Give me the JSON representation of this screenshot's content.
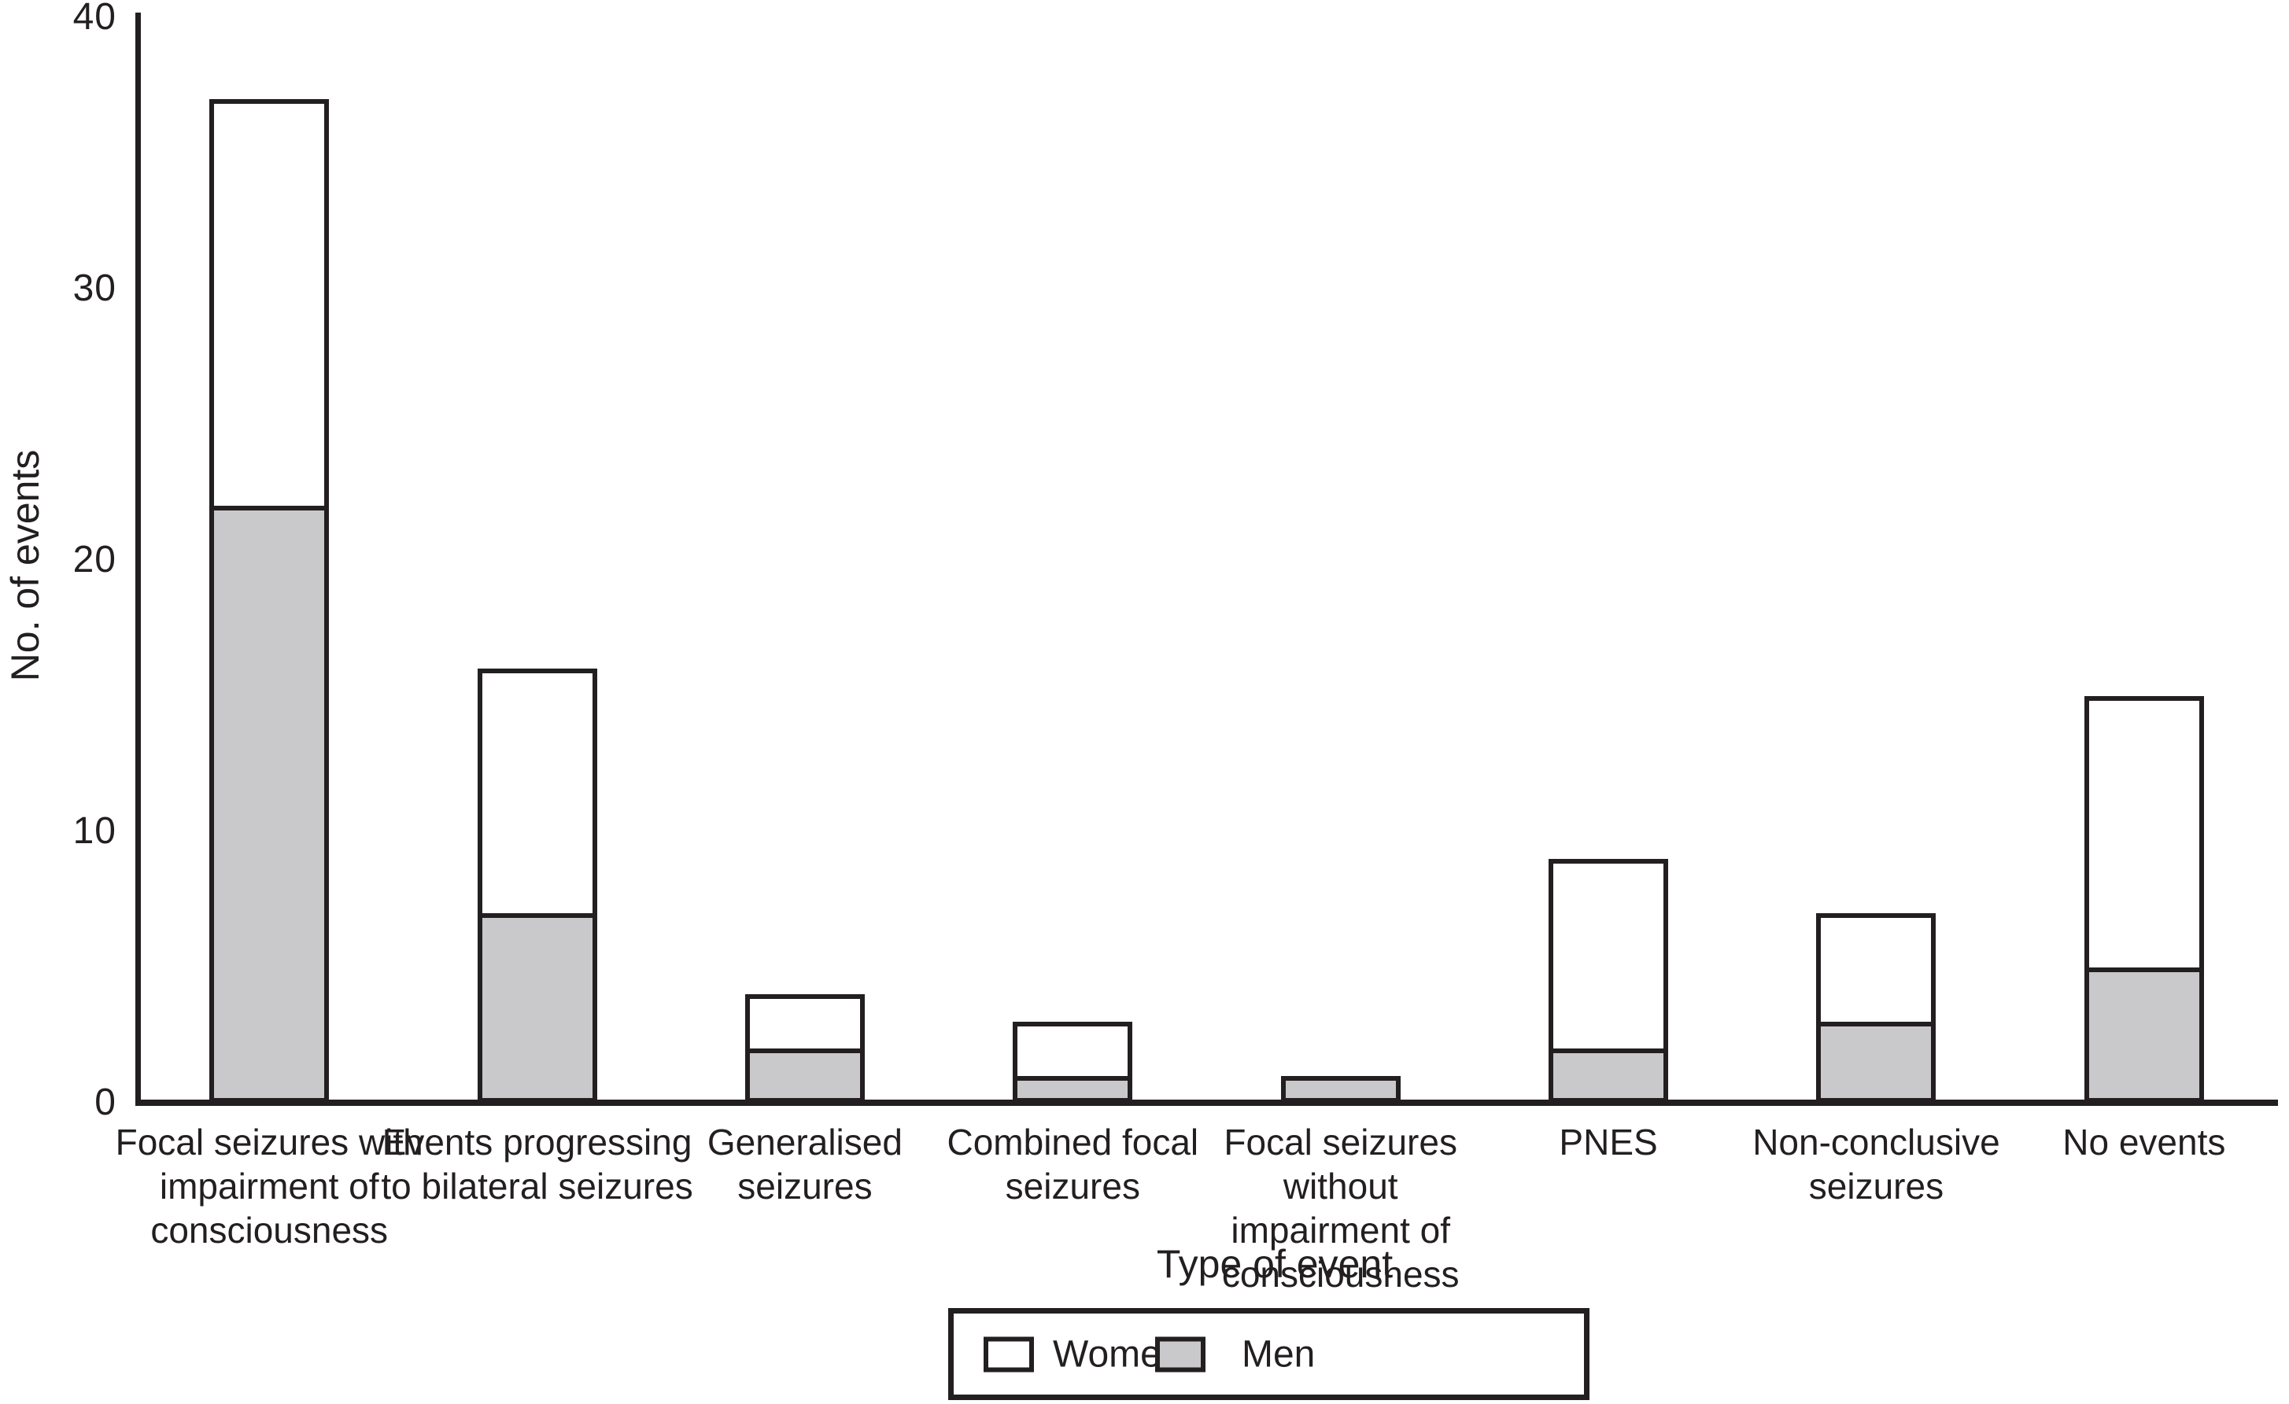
{
  "figure": {
    "background": "#ffffff",
    "line_color": "#231f20",
    "men_fill_color": "#c9c9cb",
    "women_fill_color": "#ffffff"
  },
  "y_axis": {
    "title": "No. of events",
    "ticks": [
      0,
      10,
      20,
      30,
      40
    ],
    "max": 40
  },
  "x_axis": {
    "title": "Type of event"
  },
  "legend": {
    "women_label": "Women",
    "men_label": "Men"
  },
  "chart_data": {
    "type": "bar",
    "stacked": true,
    "title": "",
    "xlabel": "Type of event",
    "ylabel": "No. of events",
    "ylim": [
      0,
      40
    ],
    "grid": false,
    "legend_position": "bottom-center-boxed",
    "categories": [
      "Focal seizures with impairment of consciousness",
      "Events progressing to bilateral seizures",
      "Generalised seizures",
      "Combined focal seizures",
      "Focal seizures without impairment of consciousness",
      "PNES",
      "Non-conclusive seizures",
      "No events"
    ],
    "category_label_lines": [
      [
        "Focal seizures with",
        "impairment of",
        "consciousness"
      ],
      [
        "Events progressing",
        "to bilateral seizures"
      ],
      [
        "Generalised",
        "seizures"
      ],
      [
        "Combined focal",
        "seizures"
      ],
      [
        "Focal seizures without",
        "impairment of",
        "consciousness"
      ],
      [
        "PNES"
      ],
      [
        "Non-conclusive",
        "seizures"
      ],
      [
        "No events"
      ]
    ],
    "series": [
      {
        "name": "Men",
        "color": "#c9c9cb",
        "values": [
          22,
          7,
          2,
          1,
          1,
          2,
          3,
          5
        ]
      },
      {
        "name": "Women",
        "color": "#ffffff",
        "values": [
          15,
          9,
          2,
          2,
          0,
          7,
          4,
          10
        ]
      }
    ],
    "totals": [
      37,
      16,
      4,
      3,
      1,
      9,
      7,
      15
    ]
  }
}
